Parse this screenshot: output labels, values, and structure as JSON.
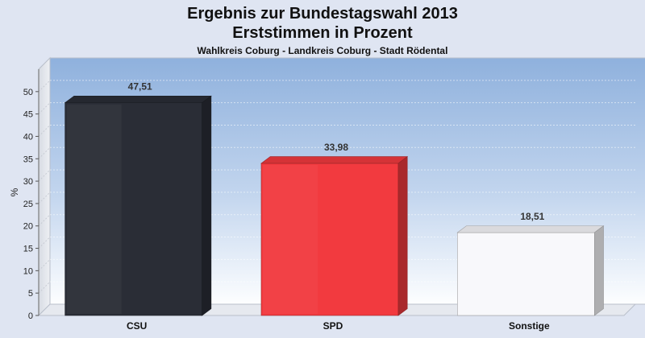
{
  "chart_data": {
    "type": "bar",
    "title": "Ergebnis zur Bundestagswahl 2013",
    "subtitle": "Erststimmen in Prozent",
    "subsubtitle": "Wahlkreis Coburg - Landkreis Coburg - Stadt Rödental",
    "ylabel": "%",
    "ylim": [
      0,
      55
    ],
    "yticks": [
      0,
      5,
      10,
      15,
      20,
      25,
      30,
      35,
      40,
      45,
      50
    ],
    "categories": [
      "CSU",
      "SPD",
      "Sonstige"
    ],
    "values": [
      47.51,
      33.98,
      18.51
    ],
    "value_labels": [
      "47,51",
      "33,98",
      "18,51"
    ],
    "colors": [
      "#2a2d36",
      "#f23a3f",
      "#f8f8fb"
    ],
    "grid": true,
    "legend": "none"
  }
}
